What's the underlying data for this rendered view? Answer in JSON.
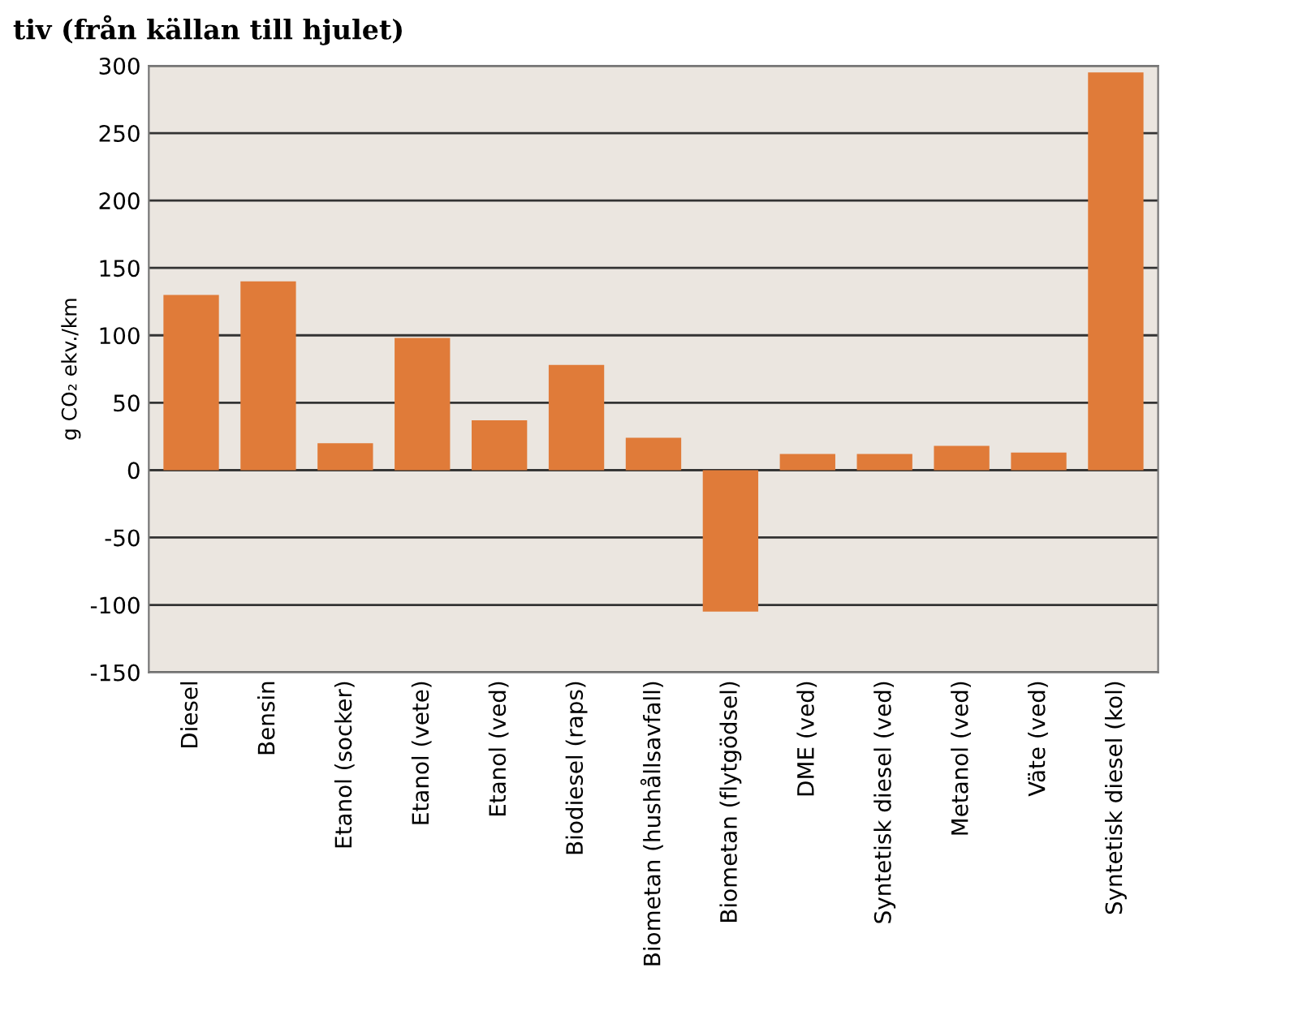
{
  "chart_data": {
    "type": "bar",
    "title": "tiv (från källan till hjulet)",
    "ylabel": "g CO₂ ekv./km",
    "categories": [
      "Diesel",
      "Bensin",
      "Etanol (socker)",
      "Etanol (vete)",
      "Etanol (ved)",
      "Biodiesel (raps)",
      "Biometan (hushållsavfall)",
      "Biometan (flytgödsel)",
      "DME (ved)",
      "Syntetisk diesel (ved)",
      "Metanol (ved)",
      "Väte (ved)",
      "Syntetisk diesel (kol)"
    ],
    "values": [
      130,
      140,
      20,
      98,
      37,
      78,
      24,
      -105,
      12,
      12,
      18,
      13,
      295
    ],
    "color": "#e07b39",
    "ylim": [
      -150,
      300
    ],
    "yticks": [
      -150,
      -100,
      -50,
      0,
      50,
      100,
      150,
      200,
      250,
      300
    ],
    "grid": "y"
  }
}
